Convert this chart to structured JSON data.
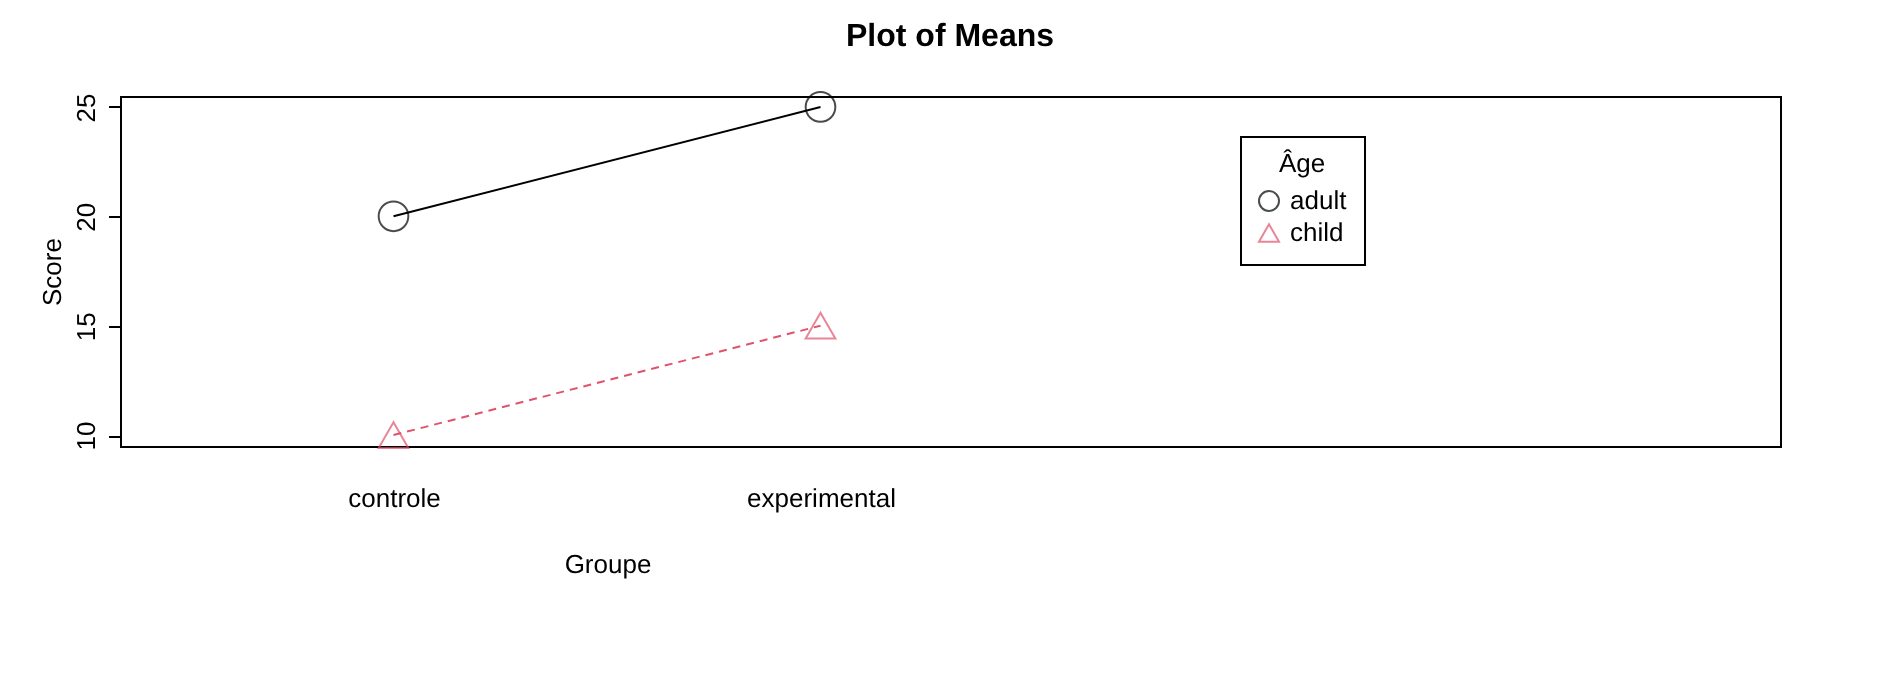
{
  "chart_data": {
    "type": "line",
    "title": "Plot of Means",
    "xlabel": "Groupe",
    "ylabel": "Score",
    "legend_title": "Âge",
    "categories": [
      "controle",
      "experimental"
    ],
    "series": [
      {
        "name": "adult",
        "color": "#000000",
        "values": [
          20,
          25
        ],
        "marker": "circle",
        "line_style": "solid"
      },
      {
        "name": "child",
        "color": "#df536b",
        "values": [
          10,
          15
        ],
        "marker": "triangle",
        "line_style": "dashed"
      }
    ],
    "ylim": [
      9.5,
      25.5
    ],
    "yticks": [
      10,
      15,
      20,
      25
    ],
    "grid": false,
    "legend": "top right"
  }
}
